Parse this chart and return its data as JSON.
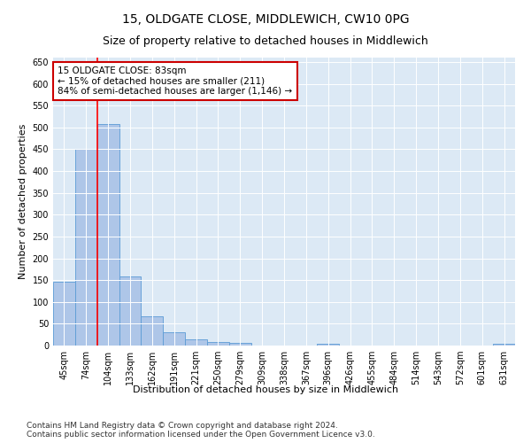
{
  "title": "15, OLDGATE CLOSE, MIDDLEWICH, CW10 0PG",
  "subtitle": "Size of property relative to detached houses in Middlewich",
  "xlabel": "Distribution of detached houses by size in Middlewich",
  "ylabel": "Number of detached properties",
  "categories": [
    "45sqm",
    "74sqm",
    "104sqm",
    "133sqm",
    "162sqm",
    "191sqm",
    "221sqm",
    "250sqm",
    "279sqm",
    "309sqm",
    "338sqm",
    "367sqm",
    "396sqm",
    "426sqm",
    "455sqm",
    "484sqm",
    "514sqm",
    "543sqm",
    "572sqm",
    "601sqm",
    "631sqm"
  ],
  "values": [
    147,
    450,
    507,
    158,
    67,
    30,
    14,
    9,
    6,
    0,
    0,
    0,
    5,
    0,
    0,
    0,
    0,
    0,
    0,
    0,
    5
  ],
  "bar_color": "#aec6e8",
  "bar_edge_color": "#5b9bd5",
  "red_line_x": 1.5,
  "annotation_line1": "15 OLDGATE CLOSE: 83sqm",
  "annotation_line2": "← 15% of detached houses are smaller (211)",
  "annotation_line3": "84% of semi-detached houses are larger (1,146) →",
  "annotation_box_color": "#ffffff",
  "annotation_box_edge": "#cc0000",
  "ylim": [
    0,
    660
  ],
  "yticks": [
    0,
    50,
    100,
    150,
    200,
    250,
    300,
    350,
    400,
    450,
    500,
    550,
    600,
    650
  ],
  "background_color": "#dce9f5",
  "footer_text": "Contains HM Land Registry data © Crown copyright and database right 2024.\nContains public sector information licensed under the Open Government Licence v3.0.",
  "title_fontsize": 10,
  "subtitle_fontsize": 9,
  "xlabel_fontsize": 8,
  "ylabel_fontsize": 8,
  "tick_fontsize": 7,
  "annotation_fontsize": 7.5,
  "footer_fontsize": 6.5
}
